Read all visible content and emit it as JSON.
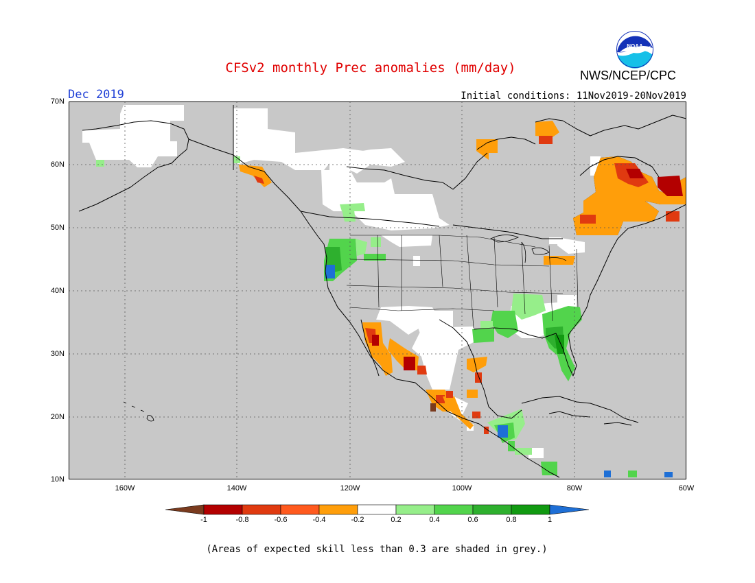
{
  "header": {
    "title": "CFSv2 monthly Prec anomalies (mm/day)",
    "month": "Dec 2019",
    "initial_conditions": "Initial conditions: 11Nov2019-20Nov2019",
    "agency": "NWS/NCEP/CPC",
    "logo_text": "NOAA"
  },
  "map": {
    "lat_labels": [
      "70N",
      "60N",
      "50N",
      "40N",
      "30N",
      "20N",
      "10N"
    ],
    "lon_labels": [
      "160W",
      "140W",
      "120W",
      "100W",
      "80W",
      "60W"
    ],
    "grey_meaning": "skill < 0.3"
  },
  "colorbar": {
    "tick_labels": [
      "-1",
      "-0.8",
      "-0.6",
      "-0.4",
      "-0.2",
      "0.2",
      "0.4",
      "0.6",
      "0.8",
      "1"
    ],
    "colors": [
      "#7a3b1e",
      "#b30000",
      "#e03a10",
      "#ff5a1e",
      "#ff9e0a",
      "#ffffff",
      "#96ee8a",
      "#52d44c",
      "#2eb02e",
      "#119a11",
      "#1e6fd6"
    ]
  },
  "colors": {
    "skill_grey": "#c8c8c8",
    "title_red": "#e00000",
    "month_blue": "#1f3fd6"
  },
  "footnote": "(Areas of expected skill less than 0.3 are shaded in grey.)"
}
